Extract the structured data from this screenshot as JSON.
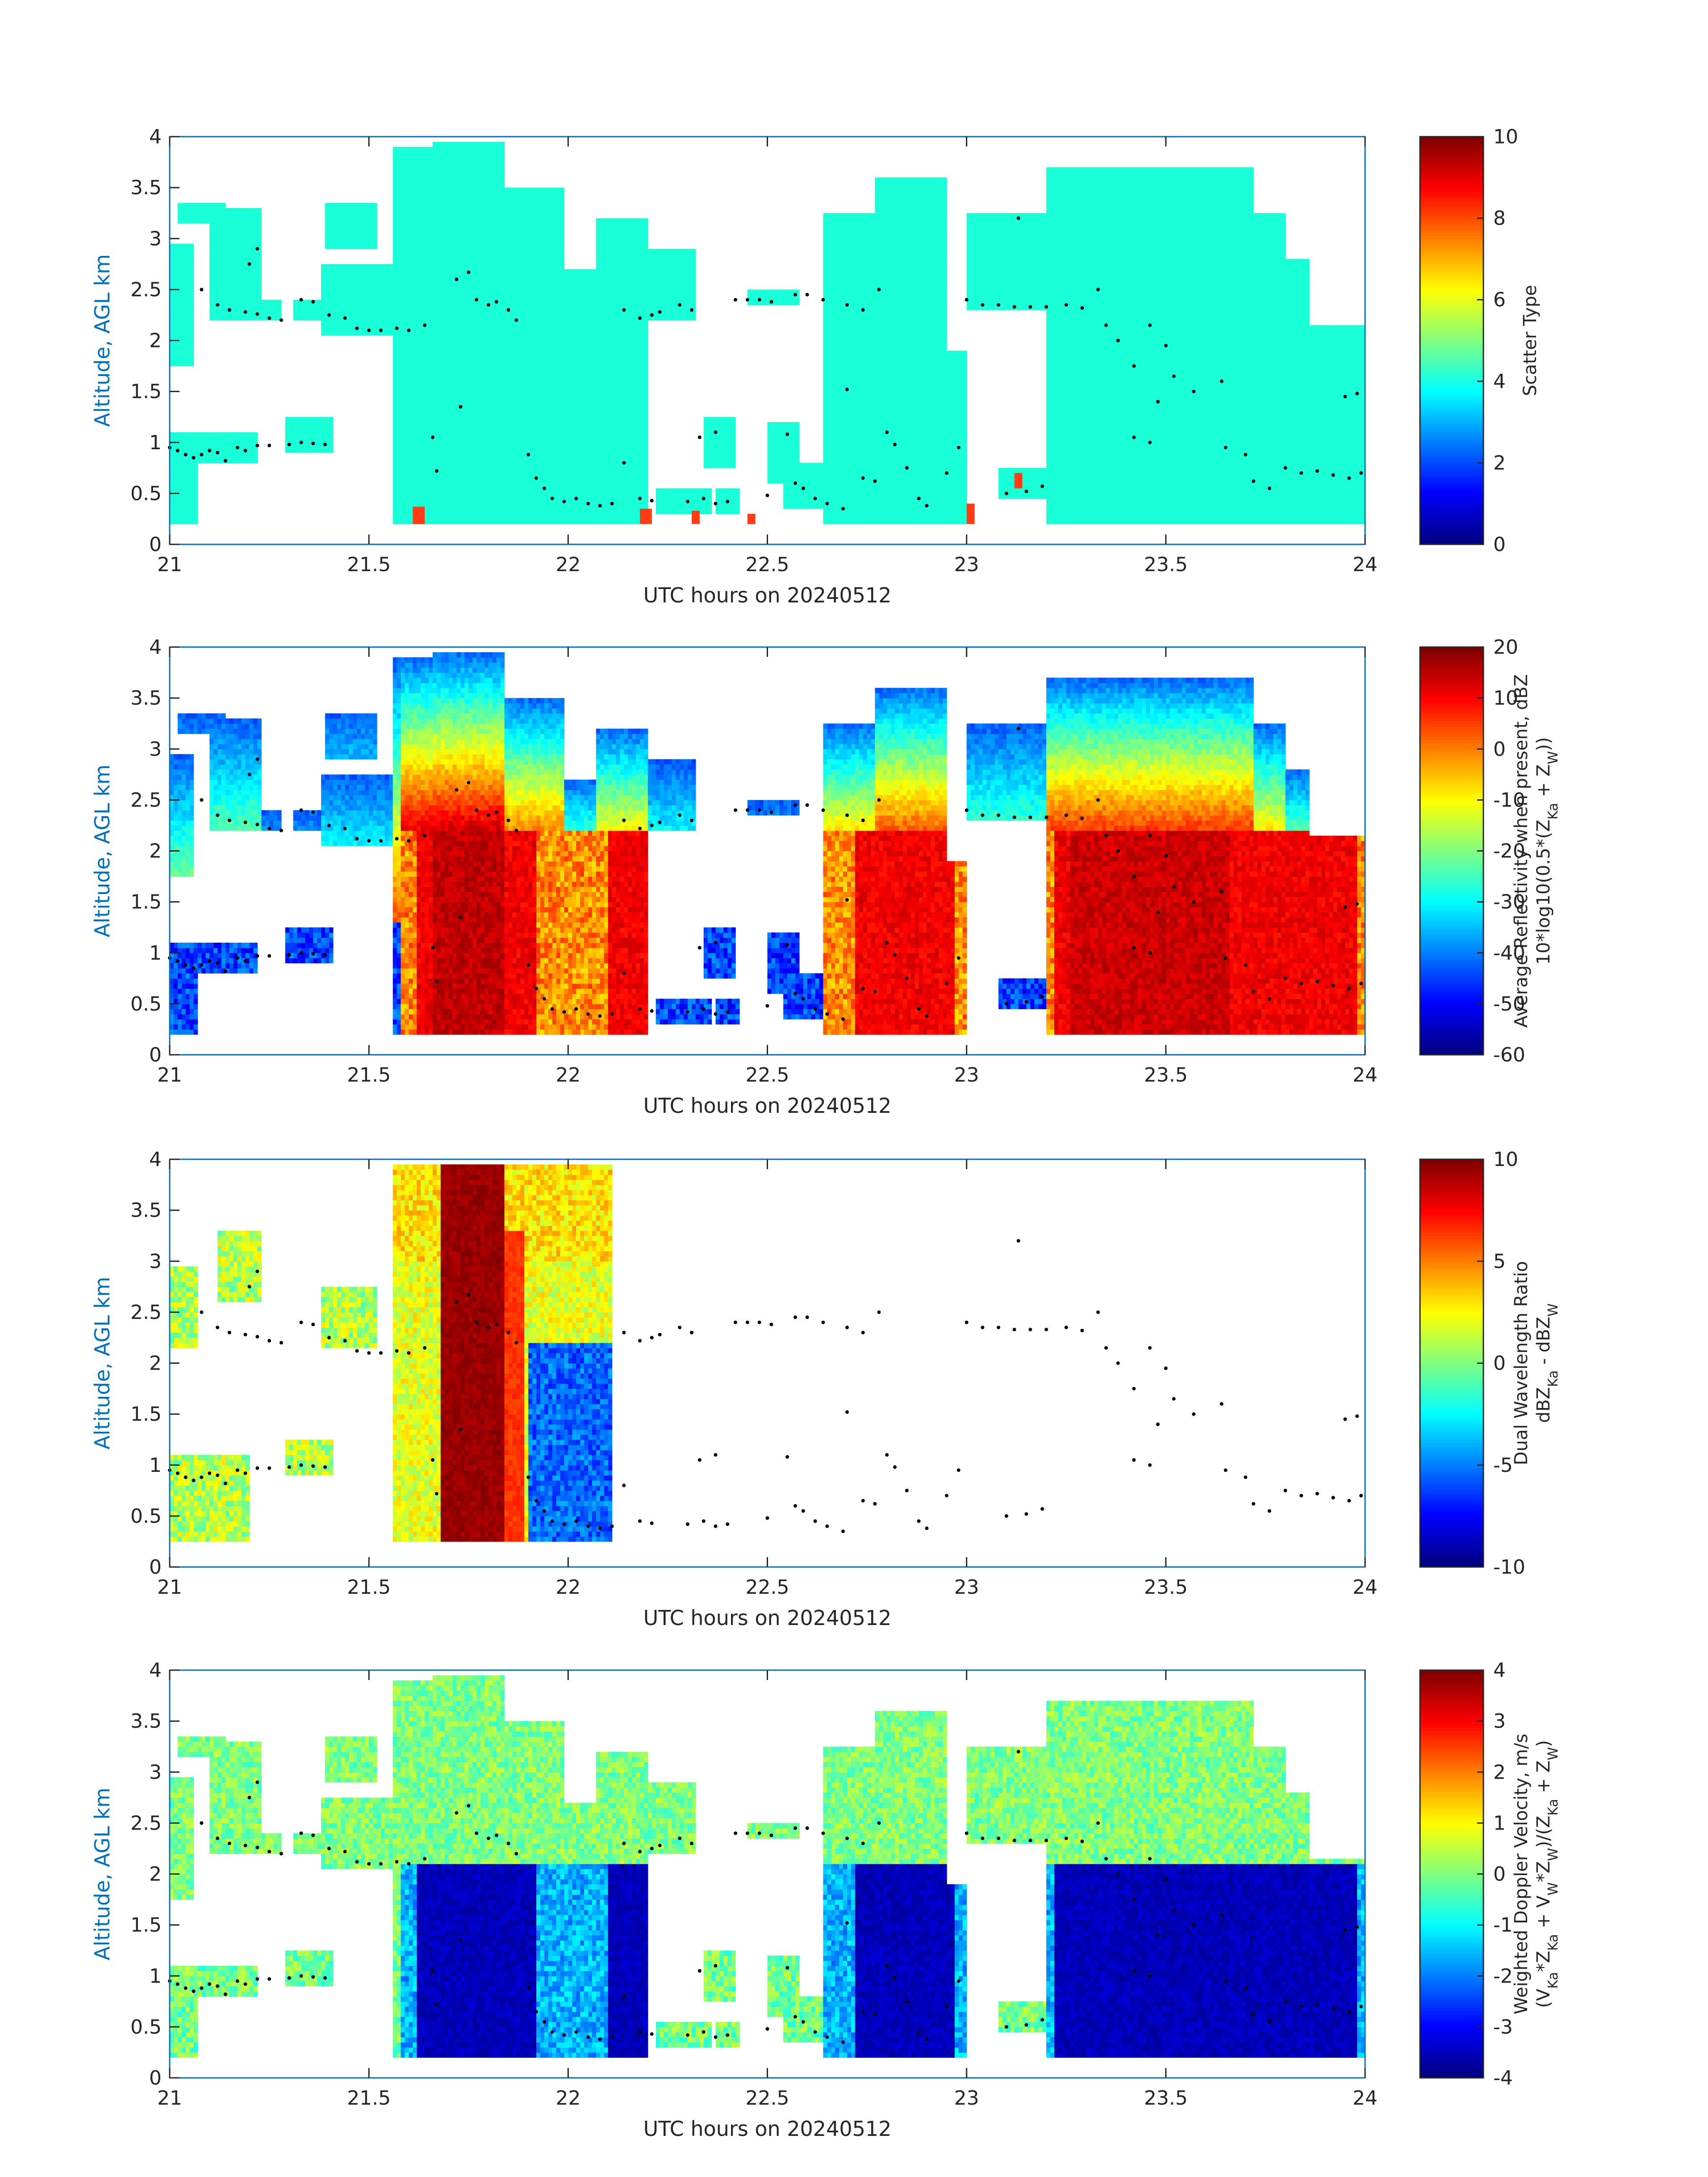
{
  "figure": {
    "xlabel": "UTC hours on 20240512",
    "ylabel": "Altitude, AGL km"
  },
  "colors": {
    "axis": "#0072BD",
    "text": "#262626",
    "scatter_fill": "#19FFD8",
    "scatter_spot": "#FF3C14",
    "dots": "#000000"
  },
  "chart_data": [
    {
      "type": "heatmap",
      "name": "scatter-type",
      "xlim": [
        21,
        24
      ],
      "ylim": [
        0,
        4
      ],
      "x_ticks": [
        "21",
        "21.5",
        "22",
        "22.5",
        "23",
        "23.5",
        "24"
      ],
      "y_ticks": [
        "0",
        "0.5",
        "1",
        "1.5",
        "2",
        "2.5",
        "3",
        "3.5",
        "4"
      ],
      "colorbar": {
        "ticks": [
          "0",
          "2",
          "4",
          "6",
          "8",
          "10"
        ],
        "range": [
          0,
          10
        ],
        "label_lines": [
          "Scatter Type"
        ]
      },
      "field": "scatter"
    },
    {
      "type": "heatmap",
      "name": "average-reflectivity",
      "xlim": [
        21,
        24
      ],
      "ylim": [
        0,
        4
      ],
      "x_ticks": [
        "21",
        "21.5",
        "22",
        "22.5",
        "23",
        "23.5",
        "24"
      ],
      "y_ticks": [
        "0",
        "0.5",
        "1",
        "1.5",
        "2",
        "2.5",
        "3",
        "3.5",
        "4"
      ],
      "colorbar": {
        "ticks": [
          "-60",
          "-50",
          "-40",
          "-30",
          "-20",
          "-10",
          "0",
          "10",
          "20"
        ],
        "range": [
          -60,
          20
        ],
        "label_lines": [
          "Average Reflectivity when present, dBZ",
          "10*log10(0.5*(Z_Ka + Z_W))"
        ]
      },
      "field": "reflectivity"
    },
    {
      "type": "heatmap",
      "name": "dual-wavelength-ratio",
      "xlim": [
        21,
        24
      ],
      "ylim": [
        0,
        4
      ],
      "x_ticks": [
        "21",
        "21.5",
        "22",
        "22.5",
        "23",
        "23.5",
        "24"
      ],
      "y_ticks": [
        "0",
        "0.5",
        "1",
        "1.5",
        "2",
        "2.5",
        "3",
        "3.5",
        "4"
      ],
      "colorbar": {
        "ticks": [
          "-10",
          "-5",
          "0",
          "5",
          "10"
        ],
        "range": [
          -10,
          10
        ],
        "label_lines": [
          "Dual Wavelength Ratio",
          "dBZ_Ka - dBZ_W"
        ]
      },
      "field": "dwr"
    },
    {
      "type": "heatmap",
      "name": "weighted-doppler-velocity",
      "xlim": [
        21,
        24
      ],
      "ylim": [
        0,
        4
      ],
      "x_ticks": [
        "21",
        "21.5",
        "22",
        "22.5",
        "23",
        "23.5",
        "24"
      ],
      "y_ticks": [
        "0",
        "0.5",
        "1",
        "1.5",
        "2",
        "2.5",
        "3",
        "3.5",
        "4"
      ],
      "colorbar": {
        "ticks": [
          "-4",
          "-3",
          "-2",
          "-1",
          "0",
          "1",
          "2",
          "3",
          "4"
        ],
        "range": [
          -4,
          4
        ],
        "label_lines": [
          "Weighted Doppler Velocity, m/s",
          "(V_Ka*Z_Ka + V_W*Z_W)/(Z_Ka + Z_W)"
        ]
      },
      "field": "velocity"
    }
  ],
  "cloud_regions": [
    {
      "x0": 21.0,
      "x1": 21.06,
      "bottom": 1.75,
      "top": 2.95
    },
    {
      "x0": 21.02,
      "x1": 21.14,
      "bottom": 3.15,
      "top": 3.35
    },
    {
      "x0": 21.1,
      "x1": 21.23,
      "bottom": 2.2,
      "top": 3.3
    },
    {
      "x0": 21.2,
      "x1": 21.28,
      "bottom": 2.2,
      "top": 2.4
    },
    {
      "x0": 21.31,
      "x1": 21.41,
      "bottom": 2.22,
      "top": 2.42
    },
    {
      "x0": 21.39,
      "x1": 21.52,
      "bottom": 2.9,
      "top": 3.35
    },
    {
      "x0": 21.38,
      "x1": 21.56,
      "bottom": 2.05,
      "top": 2.75
    },
    {
      "x0": 21.0,
      "x1": 21.07,
      "bottom": 0.18,
      "top": 1.1
    },
    {
      "x0": 21.06,
      "x1": 21.22,
      "bottom": 0.8,
      "top": 1.1
    },
    {
      "x0": 21.29,
      "x1": 21.41,
      "bottom": 0.9,
      "top": 1.25
    },
    {
      "x0": 21.56,
      "x1": 21.66,
      "bottom": 0.18,
      "top": 3.9
    },
    {
      "x0": 21.66,
      "x1": 21.84,
      "bottom": 0.18,
      "top": 3.95
    },
    {
      "x0": 21.84,
      "x1": 21.99,
      "bottom": 0.18,
      "top": 3.5
    },
    {
      "x0": 21.99,
      "x1": 22.07,
      "bottom": 0.18,
      "top": 2.7
    },
    {
      "x0": 22.07,
      "x1": 22.2,
      "bottom": 0.18,
      "top": 3.2
    },
    {
      "x0": 22.18,
      "x1": 22.32,
      "bottom": 2.2,
      "top": 2.9
    },
    {
      "x0": 22.22,
      "x1": 22.36,
      "bottom": 0.3,
      "top": 0.55
    },
    {
      "x0": 22.34,
      "x1": 22.42,
      "bottom": 0.75,
      "top": 1.25
    },
    {
      "x0": 22.37,
      "x1": 22.43,
      "bottom": 0.3,
      "top": 0.55
    },
    {
      "x0": 22.45,
      "x1": 22.58,
      "bottom": 2.33,
      "top": 2.5
    },
    {
      "x0": 22.5,
      "x1": 22.58,
      "bottom": 0.6,
      "top": 1.2
    },
    {
      "x0": 22.54,
      "x1": 22.64,
      "bottom": 0.35,
      "top": 0.8
    },
    {
      "x0": 22.64,
      "x1": 22.87,
      "bottom": 0.18,
      "top": 3.25
    },
    {
      "x0": 22.77,
      "x1": 22.95,
      "bottom": 0.18,
      "top": 3.6
    },
    {
      "x0": 22.93,
      "x1": 23.0,
      "bottom": 0.18,
      "top": 1.9
    },
    {
      "x0": 23.0,
      "x1": 23.13,
      "bottom": 2.3,
      "top": 2.5
    },
    {
      "x0": 23.0,
      "x1": 23.2,
      "bottom": 2.3,
      "top": 3.25
    },
    {
      "x0": 23.08,
      "x1": 23.2,
      "bottom": 0.45,
      "top": 0.75
    },
    {
      "x0": 23.2,
      "x1": 23.72,
      "bottom": 0.18,
      "top": 3.7
    },
    {
      "x0": 23.2,
      "x1": 23.3,
      "bottom": 2.6,
      "top": 3.55
    },
    {
      "x0": 23.3,
      "x1": 23.8,
      "bottom": 0.18,
      "top": 3.25
    },
    {
      "x0": 23.72,
      "x1": 23.86,
      "bottom": 0.18,
      "top": 2.8
    },
    {
      "x0": 23.86,
      "x1": 24.0,
      "bottom": 0.18,
      "top": 2.15
    }
  ],
  "dwr_regions": [
    {
      "x0": 21.0,
      "x1": 21.07,
      "bottom": 2.15,
      "top": 2.95
    },
    {
      "x0": 21.12,
      "x1": 21.23,
      "bottom": 2.6,
      "top": 3.3
    },
    {
      "x0": 21.38,
      "x1": 21.52,
      "bottom": 2.15,
      "top": 2.75
    },
    {
      "x0": 21.0,
      "x1": 21.2,
      "bottom": 0.25,
      "top": 1.1
    },
    {
      "x0": 21.29,
      "x1": 21.41,
      "bottom": 0.9,
      "top": 1.25
    },
    {
      "x0": 21.56,
      "x1": 22.11,
      "bottom": 0.25,
      "top": 3.95
    }
  ],
  "dots": [
    [
      21.0,
      0.95
    ],
    [
      21.02,
      0.92
    ],
    [
      21.04,
      0.88
    ],
    [
      21.06,
      0.85
    ],
    [
      21.08,
      0.88
    ],
    [
      21.1,
      0.92
    ],
    [
      21.12,
      0.9
    ],
    [
      21.14,
      0.82
    ],
    [
      21.17,
      0.95
    ],
    [
      21.19,
      0.92
    ],
    [
      21.22,
      0.97
    ],
    [
      21.25,
      0.97
    ],
    [
      21.3,
      0.98
    ],
    [
      21.33,
      1.0
    ],
    [
      21.36,
      0.99
    ],
    [
      21.39,
      0.98
    ],
    [
      21.08,
      2.5
    ],
    [
      21.12,
      2.35
    ],
    [
      21.15,
      2.3
    ],
    [
      21.19,
      2.28
    ],
    [
      21.22,
      2.26
    ],
    [
      21.25,
      2.22
    ],
    [
      21.28,
      2.2
    ],
    [
      21.2,
      2.75
    ],
    [
      21.22,
      2.9
    ],
    [
      21.33,
      2.4
    ],
    [
      21.36,
      2.38
    ],
    [
      21.4,
      2.25
    ],
    [
      21.44,
      2.22
    ],
    [
      21.47,
      2.12
    ],
    [
      21.5,
      2.1
    ],
    [
      21.53,
      2.1
    ],
    [
      21.57,
      2.12
    ],
    [
      21.6,
      2.1
    ],
    [
      21.64,
      2.15
    ],
    [
      21.72,
      2.6
    ],
    [
      21.75,
      2.67
    ],
    [
      21.77,
      2.4
    ],
    [
      21.8,
      2.35
    ],
    [
      21.82,
      2.38
    ],
    [
      21.85,
      2.3
    ],
    [
      21.87,
      2.2
    ],
    [
      21.73,
      1.35
    ],
    [
      21.67,
      0.72
    ],
    [
      21.66,
      1.05
    ],
    [
      21.9,
      0.88
    ],
    [
      21.92,
      0.65
    ],
    [
      21.94,
      0.55
    ],
    [
      21.96,
      0.45
    ],
    [
      21.99,
      0.42
    ],
    [
      22.02,
      0.45
    ],
    [
      22.05,
      0.4
    ],
    [
      22.08,
      0.38
    ],
    [
      22.11,
      0.4
    ],
    [
      22.14,
      0.8
    ],
    [
      22.18,
      0.45
    ],
    [
      22.21,
      0.43
    ],
    [
      22.14,
      2.3
    ],
    [
      22.18,
      2.22
    ],
    [
      22.21,
      2.25
    ],
    [
      22.23,
      2.28
    ],
    [
      22.28,
      2.35
    ],
    [
      22.31,
      2.3
    ],
    [
      22.3,
      0.42
    ],
    [
      22.34,
      0.45
    ],
    [
      22.37,
      0.4
    ],
    [
      22.33,
      1.05
    ],
    [
      22.37,
      1.1
    ],
    [
      22.4,
      0.42
    ],
    [
      22.5,
      0.48
    ],
    [
      22.42,
      2.4
    ],
    [
      22.45,
      2.4
    ],
    [
      22.48,
      2.4
    ],
    [
      22.51,
      2.38
    ],
    [
      22.57,
      2.45
    ],
    [
      22.6,
      2.45
    ],
    [
      22.64,
      2.4
    ],
    [
      22.7,
      2.35
    ],
    [
      22.74,
      2.3
    ],
    [
      22.78,
      2.5
    ],
    [
      22.55,
      1.08
    ],
    [
      22.57,
      0.6
    ],
    [
      22.59,
      0.55
    ],
    [
      22.62,
      0.45
    ],
    [
      22.65,
      0.4
    ],
    [
      22.69,
      0.35
    ],
    [
      22.7,
      1.52
    ],
    [
      22.74,
      0.65
    ],
    [
      22.77,
      0.62
    ],
    [
      22.8,
      1.1
    ],
    [
      22.82,
      0.98
    ],
    [
      22.85,
      0.75
    ],
    [
      22.88,
      0.45
    ],
    [
      22.9,
      0.38
    ],
    [
      22.95,
      0.7
    ],
    [
      22.98,
      0.95
    ],
    [
      23.0,
      2.4
    ],
    [
      23.04,
      2.35
    ],
    [
      23.08,
      2.35
    ],
    [
      23.12,
      2.33
    ],
    [
      23.16,
      2.33
    ],
    [
      23.2,
      2.33
    ],
    [
      23.25,
      2.35
    ],
    [
      23.29,
      2.32
    ],
    [
      23.13,
      3.2
    ],
    [
      23.1,
      0.5
    ],
    [
      23.15,
      0.52
    ],
    [
      23.19,
      0.57
    ],
    [
      23.33,
      2.5
    ],
    [
      23.35,
      2.15
    ],
    [
      23.38,
      2.0
    ],
    [
      23.42,
      1.75
    ],
    [
      23.46,
      2.15
    ],
    [
      23.5,
      1.95
    ],
    [
      23.52,
      1.65
    ],
    [
      23.48,
      1.4
    ],
    [
      23.57,
      1.5
    ],
    [
      23.64,
      1.6
    ],
    [
      23.42,
      1.05
    ],
    [
      23.46,
      1.0
    ],
    [
      23.65,
      0.95
    ],
    [
      23.7,
      0.88
    ],
    [
      23.72,
      0.62
    ],
    [
      23.76,
      0.55
    ],
    [
      23.8,
      0.75
    ],
    [
      23.84,
      0.7
    ],
    [
      23.88,
      0.72
    ],
    [
      23.92,
      0.68
    ],
    [
      23.96,
      0.65
    ],
    [
      23.95,
      1.45
    ],
    [
      23.98,
      1.48
    ],
    [
      23.99,
      0.7
    ]
  ],
  "red_spots": [
    {
      "x0": 21.61,
      "x1": 21.64,
      "bottom": 0.2,
      "top": 0.37
    },
    {
      "x0": 22.18,
      "x1": 22.21,
      "bottom": 0.2,
      "top": 0.35
    },
    {
      "x0": 22.31,
      "x1": 22.33,
      "bottom": 0.2,
      "top": 0.33
    },
    {
      "x0": 22.45,
      "x1": 22.47,
      "bottom": 0.2,
      "top": 0.3
    },
    {
      "x0": 23.0,
      "x1": 23.02,
      "bottom": 0.2,
      "top": 0.4
    },
    {
      "x0": 23.12,
      "x1": 23.14,
      "bottom": 0.55,
      "top": 0.7
    }
  ]
}
